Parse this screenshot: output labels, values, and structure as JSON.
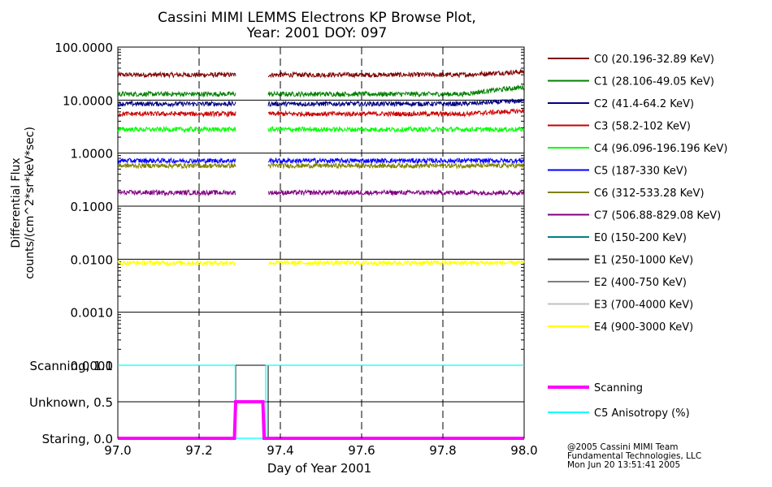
{
  "chart_data": [
    {
      "type": "line",
      "title": "Cassini MIMI LEMMS Electrons KP Browse Plot,",
      "subtitle": "Year: 2001 DOY: 097",
      "ylabel_line1": "Differential Flux",
      "ylabel_line2": "counts/(cm^2*sr*keV*sec)",
      "yscale": "log",
      "ylim": [
        0.0001,
        100
      ],
      "xlim": [
        97.0,
        98.0
      ],
      "ytick_labels": [
        "100.0000",
        "10.0000",
        "1.0000",
        "0.1000",
        "0.0100",
        "0.0010",
        "0.0001"
      ],
      "ytick_values": [
        100,
        10,
        1,
        0.1,
        0.01,
        0.001,
        0.0001
      ],
      "gap": [
        97.29,
        97.37
      ],
      "legend_position": "right",
      "series": [
        {
          "name": "C0 (20.196-32.89 KeV)",
          "color": "#800000",
          "level": 30,
          "drawn": true
        },
        {
          "name": "C1 (28.106-49.05 KeV)",
          "color": "#008000",
          "level": 13,
          "drawn": true
        },
        {
          "name": "C2 (41.4-64.2 KeV)",
          "color": "#000080",
          "level": 8.5,
          "drawn": true
        },
        {
          "name": "C3 (58.2-102 KeV)",
          "color": "#cc0000",
          "level": 5.5,
          "drawn": true
        },
        {
          "name": "C4 (96.096-196.196 KeV)",
          "color": "#00ff00",
          "level": 2.8,
          "drawn": true
        },
        {
          "name": "C5 (187-330 KeV)",
          "color": "#0000ff",
          "level": 0.72,
          "drawn": true
        },
        {
          "name": "C6 (312-533.28 KeV)",
          "color": "#808000",
          "level": 0.58,
          "drawn": true
        },
        {
          "name": "C7 (506.88-829.08 KeV)",
          "color": "#800080",
          "level": 0.18,
          "drawn": true
        },
        {
          "name": "E0 (150-200 KeV)",
          "color": "#008080",
          "drawn": false
        },
        {
          "name": "E1 (250-1000 KeV)",
          "color": "#404040",
          "drawn": false
        },
        {
          "name": "E2 (400-750 KeV)",
          "color": "#808080",
          "drawn": false
        },
        {
          "name": "E3 (700-4000 KeV)",
          "color": "#c0c0c0",
          "drawn": false
        },
        {
          "name": "E4 (900-3000 KeV)",
          "color": "#ffff00",
          "level": 0.0085,
          "drawn": true
        }
      ]
    },
    {
      "type": "line",
      "xlabel": "Day of Year 2001",
      "xlim": [
        97.0,
        98.0
      ],
      "xtick_labels": [
        "97.0",
        "97.2",
        "97.4",
        "97.6",
        "97.8",
        "98.0"
      ],
      "xtick_values": [
        97.0,
        97.2,
        97.4,
        97.6,
        97.8,
        98.0
      ],
      "ylim": [
        0,
        1
      ],
      "ytick_labels": [
        "Scanning, 1.0",
        "Unknown, 0.5",
        "Staring, 0.0"
      ],
      "ytick_values": [
        1.0,
        0.5,
        0.0
      ],
      "series": [
        {
          "name": "Scanning",
          "color": "#ff00ff",
          "x": [
            97.0,
            97.287,
            97.29,
            97.357,
            97.36,
            98.0
          ],
          "y": [
            0,
            0,
            0.5,
            0.5,
            0,
            0
          ]
        },
        {
          "name": "C5 Anisotropy (%)",
          "color": "#00ffff",
          "x": [
            97.0,
            97.289,
            97.289,
            97.364,
            97.364,
            98.0
          ],
          "y": [
            1.0,
            1.0,
            0.0,
            0.0,
            1.0,
            1.0
          ]
        }
      ]
    }
  ],
  "footer": {
    "line1": "@2005 Cassini MIMI Team",
    "line2": "Fundamental Technologies, LLC",
    "line3": "Mon Jun 20 13:51:41 2005"
  }
}
